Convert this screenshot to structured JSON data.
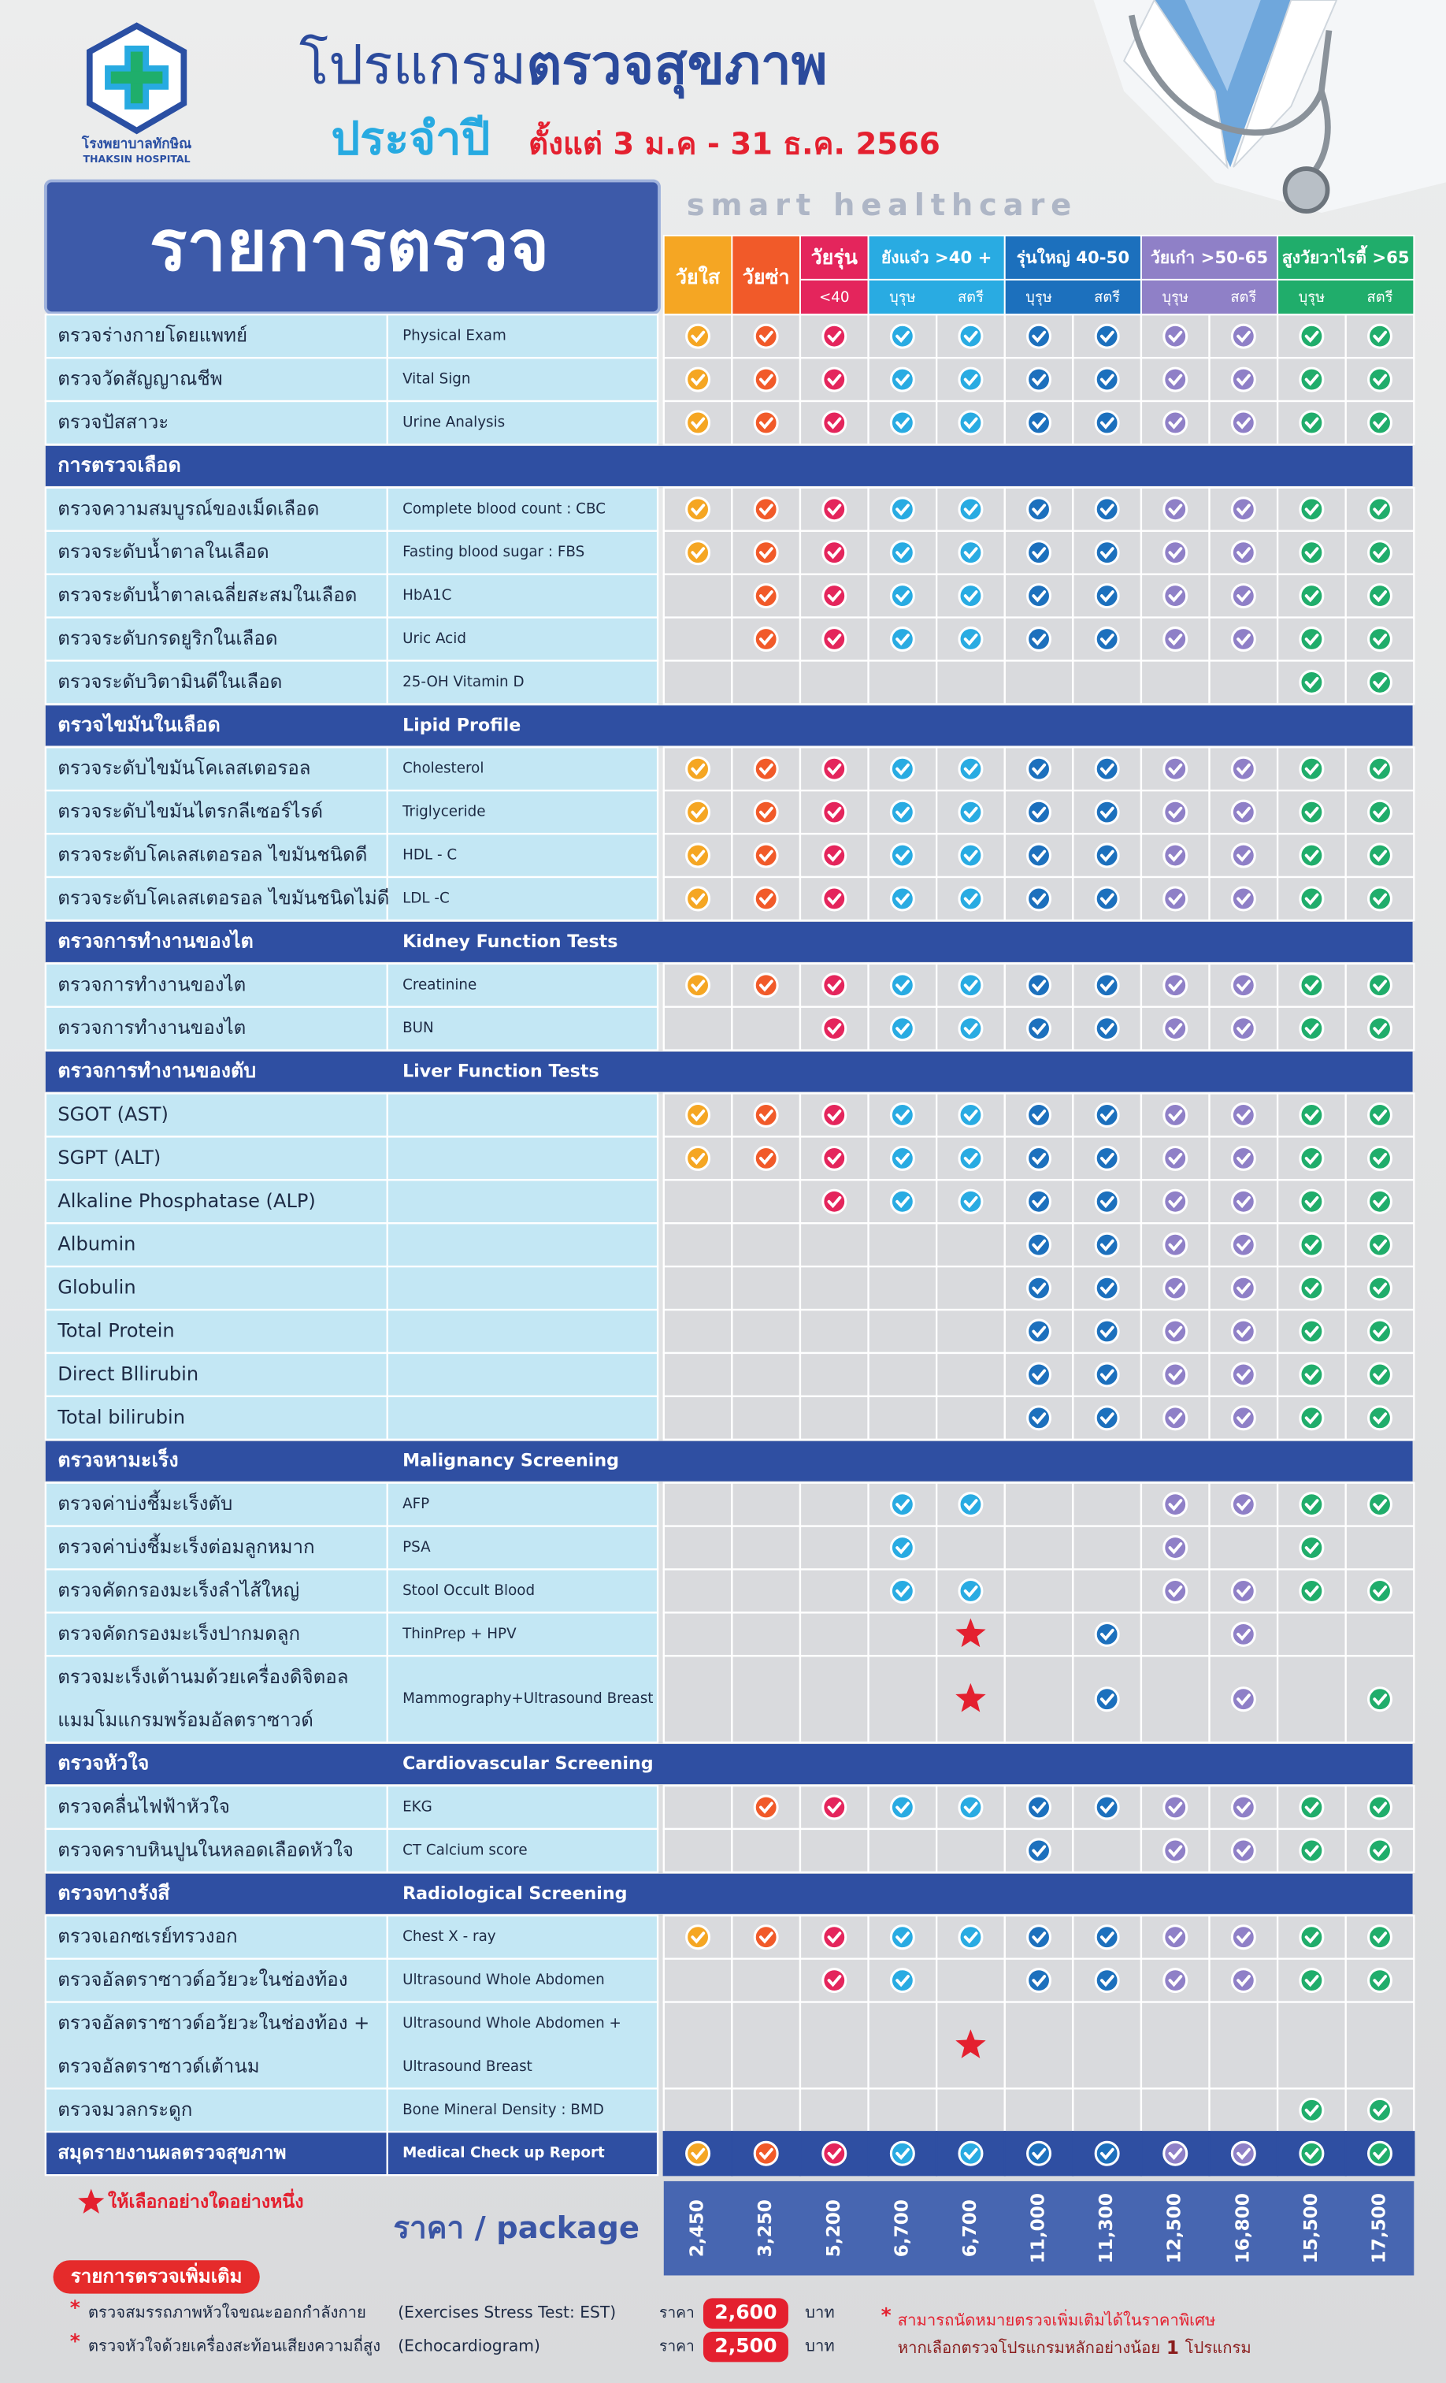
{
  "header": {
    "logo_th": "โรงพยาบาลทักษิณ",
    "logo_en": "THAKSIN HOSPITAL",
    "title_a": "โปรแกรม",
    "title_b": "ตรวจสุขภาพ",
    "title_c": "ประจำปี",
    "date": "ตั้งแต่ 3 ม.ค - 31 ธ.ค. 2566",
    "tagline": "smart healthcare"
  },
  "table": {
    "heading": "รายการตรวจ",
    "groups": [
      {
        "label": "วัยใส",
        "color": "#f5a623",
        "subs": []
      },
      {
        "label": "วัยซ่า",
        "color": "#f15a29",
        "subs": []
      },
      {
        "label": "วัยรุ่น",
        "color": "#e4255c",
        "subs": [
          "<40"
        ]
      },
      {
        "label": "ยังแจ๋ว >40 +",
        "color": "#29abe2",
        "subs": [
          "บุรุษ",
          "สตรี"
        ]
      },
      {
        "label": "รุ่นใหญ่ 40-50",
        "color": "#1c70bd",
        "subs": [
          "บุรุษ",
          "สตรี"
        ]
      },
      {
        "label": "วัยเก๋า >50-65",
        "color": "#8f80c7",
        "subs": [
          "บุรุษ",
          "สตรี"
        ]
      },
      {
        "label": "สูงวัยวาไรตี้ >65",
        "color": "#20ad6b",
        "subs": [
          "บุรุษ",
          "สตรี"
        ]
      }
    ],
    "rows": [
      {
        "th": "ตรวจร่างกายโดยแพทย์",
        "en": "Physical Exam",
        "marks": [
          1,
          1,
          1,
          1,
          1,
          1,
          1,
          1,
          1,
          1,
          1
        ]
      },
      {
        "th": "ตรวจวัดสัญญาณชีพ",
        "en": "Vital Sign",
        "marks": [
          1,
          1,
          1,
          1,
          1,
          1,
          1,
          1,
          1,
          1,
          1
        ]
      },
      {
        "th": "ตรวจปัสสาวะ",
        "en": "Urine Analysis",
        "marks": [
          1,
          1,
          1,
          1,
          1,
          1,
          1,
          1,
          1,
          1,
          1
        ]
      },
      {
        "section": "การตรวจเลือด"
      },
      {
        "th": "ตรวจความสมบูรณ์ของเม็ดเลือด",
        "en": "Complete blood count : CBC",
        "marks": [
          1,
          1,
          1,
          1,
          1,
          1,
          1,
          1,
          1,
          1,
          1
        ]
      },
      {
        "th": "ตรวจระดับน้ำตาลในเลือด",
        "en": "Fasting blood sugar : FBS",
        "marks": [
          1,
          1,
          1,
          1,
          1,
          1,
          1,
          1,
          1,
          1,
          1
        ]
      },
      {
        "th": "ตรวจระดับน้ำตาลเฉลี่ยสะสมในเลือด",
        "en": "HbA1C",
        "marks": [
          0,
          1,
          1,
          1,
          1,
          1,
          1,
          1,
          1,
          1,
          1
        ]
      },
      {
        "th": "ตรวจระดับกรดยูริกในเลือด",
        "en": "Uric Acid",
        "marks": [
          0,
          1,
          1,
          1,
          1,
          1,
          1,
          1,
          1,
          1,
          1
        ]
      },
      {
        "th": "ตรวจระดับวิตามินดีในเลือด",
        "en": "25-OH Vitamin D",
        "marks": [
          0,
          0,
          0,
          0,
          0,
          0,
          0,
          0,
          0,
          1,
          1
        ]
      },
      {
        "section": "ตรวจไขมันในเลือด",
        "en": "Lipid Profile"
      },
      {
        "th": "ตรวจระดับไขมันโคเลสเตอรอล",
        "en": "Cholesterol",
        "marks": [
          1,
          1,
          1,
          1,
          1,
          1,
          1,
          1,
          1,
          1,
          1
        ]
      },
      {
        "th": "ตรวจระดับไขมันไตรกลีเซอร์ไรด์",
        "en": "Triglyceride",
        "marks": [
          1,
          1,
          1,
          1,
          1,
          1,
          1,
          1,
          1,
          1,
          1
        ]
      },
      {
        "th": "ตรวจระดับโคเลสเตอรอล ไขมันชนิดดี",
        "en": "HDL - C",
        "marks": [
          1,
          1,
          1,
          1,
          1,
          1,
          1,
          1,
          1,
          1,
          1
        ]
      },
      {
        "th": "ตรวจระดับโคเลสเตอรอล ไขมันชนิดไม่ดี",
        "en": "LDL -C",
        "marks": [
          1,
          1,
          1,
          1,
          1,
          1,
          1,
          1,
          1,
          1,
          1
        ]
      },
      {
        "section": "ตรวจการทำงานของไต",
        "en": "Kidney Function Tests"
      },
      {
        "th": "ตรวจการทำงานของไต",
        "en": "Creatinine",
        "marks": [
          1,
          1,
          1,
          1,
          1,
          1,
          1,
          1,
          1,
          1,
          1
        ]
      },
      {
        "th": "ตรวจการทำงานของไต",
        "en": "BUN",
        "marks": [
          0,
          0,
          1,
          1,
          1,
          1,
          1,
          1,
          1,
          1,
          1
        ]
      },
      {
        "section": "ตรวจการทำงานของตับ",
        "en": "Liver Function Tests"
      },
      {
        "th": "SGOT (AST)",
        "marks": [
          1,
          1,
          1,
          1,
          1,
          1,
          1,
          1,
          1,
          1,
          1
        ]
      },
      {
        "th": "SGPT (ALT)",
        "marks": [
          1,
          1,
          1,
          1,
          1,
          1,
          1,
          1,
          1,
          1,
          1
        ]
      },
      {
        "th": "Alkaline Phosphatase (ALP)",
        "marks": [
          0,
          0,
          1,
          1,
          1,
          1,
          1,
          1,
          1,
          1,
          1
        ]
      },
      {
        "th": "Albumin",
        "marks": [
          0,
          0,
          0,
          0,
          0,
          1,
          1,
          1,
          1,
          1,
          1
        ]
      },
      {
        "th": "Globulin",
        "marks": [
          0,
          0,
          0,
          0,
          0,
          1,
          1,
          1,
          1,
          1,
          1
        ]
      },
      {
        "th": "Total Protein",
        "marks": [
          0,
          0,
          0,
          0,
          0,
          1,
          1,
          1,
          1,
          1,
          1
        ]
      },
      {
        "th": "Direct Bllirubin",
        "marks": [
          0,
          0,
          0,
          0,
          0,
          1,
          1,
          1,
          1,
          1,
          1
        ]
      },
      {
        "th": "Total bilirubin",
        "marks": [
          0,
          0,
          0,
          0,
          0,
          1,
          1,
          1,
          1,
          1,
          1
        ]
      },
      {
        "section": "ตรวจหามะเร็ง",
        "en": "Malignancy  Screening"
      },
      {
        "th": "ตรวจค่าบ่งชี้มะเร็งตับ",
        "en": "AFP",
        "marks": [
          0,
          0,
          0,
          1,
          1,
          0,
          0,
          1,
          1,
          1,
          1
        ]
      },
      {
        "th": "ตรวจค่าบ่งชี้มะเร็งต่อมลูกหมาก",
        "en": "PSA",
        "marks": [
          0,
          0,
          0,
          1,
          0,
          0,
          0,
          1,
          0,
          1,
          0
        ]
      },
      {
        "th": "ตรวจคัดกรองมะเร็งลำไส้ใหญ่",
        "en": "Stool Occult Blood",
        "marks": [
          0,
          0,
          0,
          1,
          1,
          0,
          0,
          1,
          1,
          1,
          1
        ]
      },
      {
        "th": "ตรวจคัดกรองมะเร็งปากมดลูก",
        "en": "ThinPrep + HPV",
        "marks": [
          0,
          0,
          0,
          0,
          2,
          0,
          1,
          0,
          1,
          0,
          0
        ]
      },
      {
        "th": [
          "ตรวจมะเร็งเต้านมด้วยเครื่องดิจิตอล",
          "แมมโมแกรมพร้อมอัลตราซาวด์"
        ],
        "en": [
          "Mammography+Ultrasound Breast"
        ],
        "marks": [
          0,
          0,
          0,
          0,
          2,
          0,
          1,
          0,
          1,
          0,
          1
        ]
      },
      {
        "section": "ตรวจหัวใจ",
        "en": "Cardiovascular Screening"
      },
      {
        "th": "ตรวจคลื่นไฟฟ้าหัวใจ",
        "en": "EKG",
        "marks": [
          0,
          1,
          1,
          1,
          1,
          1,
          1,
          1,
          1,
          1,
          1
        ]
      },
      {
        "th": "ตรวจคราบหินปูนในหลอดเลือดหัวใจ",
        "en": "CT Calcium score",
        "marks": [
          0,
          0,
          0,
          0,
          0,
          1,
          0,
          1,
          1,
          1,
          1
        ]
      },
      {
        "section": "ตรวจทางรังสี",
        "en": "Radiological Screening"
      },
      {
        "th": "ตรวจเอกซเรย์ทรวงอก",
        "en": "Chest X - ray",
        "marks": [
          1,
          1,
          1,
          1,
          1,
          1,
          1,
          1,
          1,
          1,
          1
        ]
      },
      {
        "th": "ตรวจอัลตราซาวด์อวัยวะในช่องท้อง",
        "en": "Ultrasound Whole Abdomen",
        "marks": [
          0,
          0,
          1,
          1,
          0,
          1,
          1,
          1,
          1,
          1,
          1
        ]
      },
      {
        "th": [
          "ตรวจอัลตราซาวด์อวัยวะในช่องท้อง +",
          "ตรวจอัลตราซาวด์เต้านม"
        ],
        "en": [
          "Ultrasound Whole Abdomen +",
          "Ultrasound Breast"
        ],
        "marks": [
          0,
          0,
          0,
          0,
          2,
          0,
          0,
          0,
          0,
          0,
          0
        ]
      },
      {
        "th": "ตรวจมวลกระดูก",
        "en": "Bone Mineral Density : BMD",
        "marks": [
          0,
          0,
          0,
          0,
          0,
          0,
          0,
          0,
          0,
          1,
          1
        ]
      }
    ],
    "summary": {
      "th": "สมุดรายงานผลตรวจสุขภาพ",
      "en": "Medical Check up Report",
      "marks": [
        1,
        1,
        1,
        1,
        1,
        1,
        1,
        1,
        1,
        1,
        1
      ]
    },
    "prices": [
      "2,450",
      "3,250",
      "5,200",
      "6,700",
      "6,700",
      "11,000",
      "11,300",
      "12,500",
      "16,800",
      "15,500",
      "17,500"
    ],
    "price_label": "ราคา / package",
    "note": "ให้เลือกอย่างใดอย่างหนึ่ง"
  },
  "footer": {
    "title": "รายการตรวจเพิ่มเติม",
    "bullet": "*",
    "items": [
      {
        "name": "ตรวจสมรรถภาพหัวใจขณะออกกำลังกาย",
        "en": "(Exercises Stress Test: EST)",
        "price_word": "ราคา",
        "price": "2,600",
        "unit": "บาท"
      },
      {
        "name": "ตรวจหัวใจด้วยเครื่องสะท้อนเสียงความถี่สูง",
        "en": "(Echocardiogram)",
        "price_word": "ราคา",
        "price": "2,500",
        "unit": "บาท"
      }
    ],
    "remark_1": "สามารถนัดหมายตรวจเพิ่มเติมได้ในราคาพิเศษ",
    "remark_2a": "หากเลือกตรวจโปรแกรมหลักอย่างน้อย",
    "remark_2b": "1",
    "remark_2c": "โปรแกรม"
  }
}
